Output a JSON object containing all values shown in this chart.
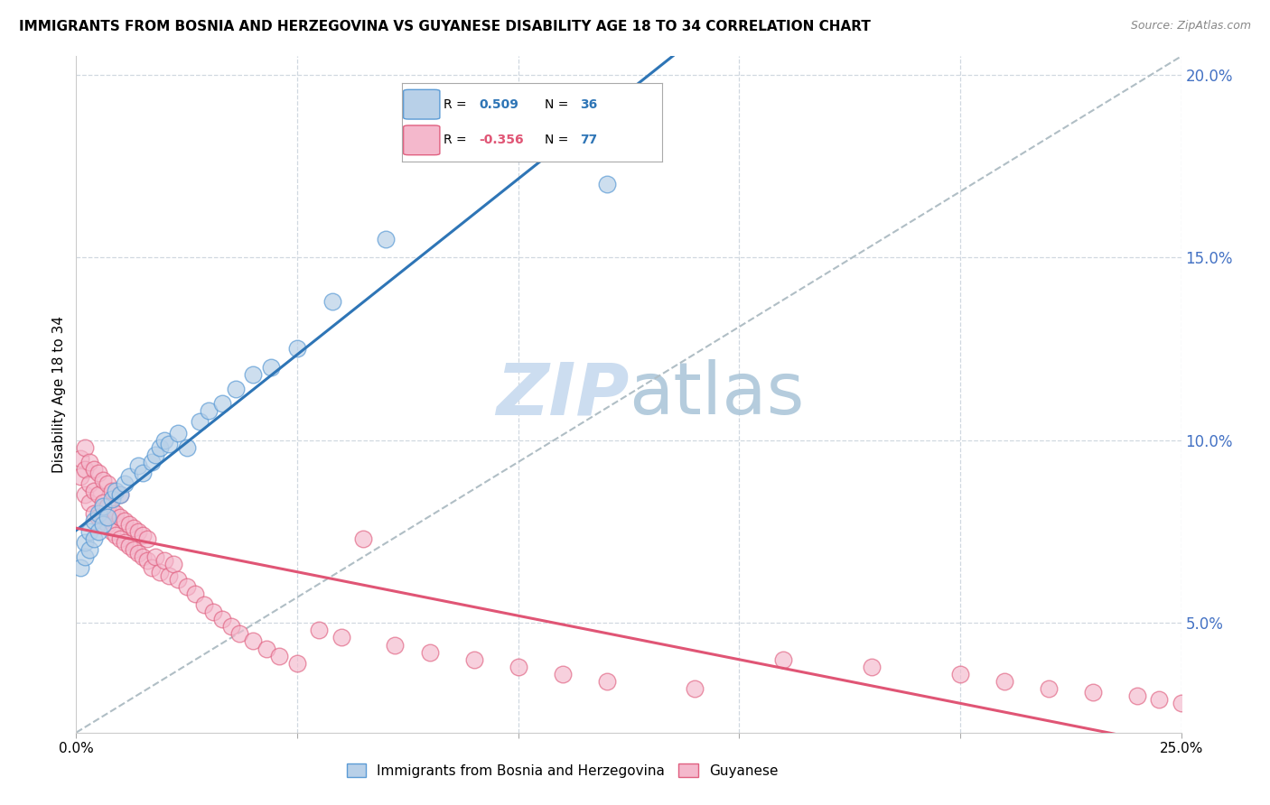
{
  "title": "IMMIGRANTS FROM BOSNIA AND HERZEGOVINA VS GUYANESE DISABILITY AGE 18 TO 34 CORRELATION CHART",
  "source": "Source: ZipAtlas.com",
  "ylabel": "Disability Age 18 to 34",
  "xlim": [
    0.0,
    0.25
  ],
  "ylim": [
    0.02,
    0.205
  ],
  "bosnia_R": 0.509,
  "bosnia_N": 36,
  "guyanese_R": -0.356,
  "guyanese_N": 77,
  "bosnia_color": "#b8d0e8",
  "bosnia_edge_color": "#5b9bd5",
  "bosnia_line_color": "#2e75b6",
  "guyanese_color": "#f4b8cc",
  "guyanese_edge_color": "#e06080",
  "guyanese_line_color": "#e05575",
  "diagonal_color": "#b0bec5",
  "watermark_color": "#ccddf0",
  "grid_color": "#d0d8e0",
  "bosnia_x": [
    0.001,
    0.002,
    0.002,
    0.003,
    0.003,
    0.004,
    0.004,
    0.005,
    0.005,
    0.006,
    0.006,
    0.007,
    0.008,
    0.009,
    0.01,
    0.011,
    0.012,
    0.014,
    0.015,
    0.017,
    0.018,
    0.019,
    0.02,
    0.021,
    0.023,
    0.025,
    0.028,
    0.03,
    0.033,
    0.036,
    0.04,
    0.044,
    0.05,
    0.058,
    0.07,
    0.12
  ],
  "bosnia_y": [
    0.065,
    0.068,
    0.072,
    0.07,
    0.075,
    0.073,
    0.078,
    0.075,
    0.08,
    0.077,
    0.082,
    0.079,
    0.084,
    0.086,
    0.085,
    0.088,
    0.09,
    0.093,
    0.091,
    0.094,
    0.096,
    0.098,
    0.1,
    0.099,
    0.102,
    0.098,
    0.105,
    0.108,
    0.11,
    0.114,
    0.118,
    0.12,
    0.125,
    0.138,
    0.155,
    0.17
  ],
  "guyanese_x": [
    0.001,
    0.001,
    0.002,
    0.002,
    0.002,
    0.003,
    0.003,
    0.003,
    0.004,
    0.004,
    0.004,
    0.005,
    0.005,
    0.005,
    0.006,
    0.006,
    0.006,
    0.007,
    0.007,
    0.007,
    0.008,
    0.008,
    0.008,
    0.009,
    0.009,
    0.01,
    0.01,
    0.01,
    0.011,
    0.011,
    0.012,
    0.012,
    0.013,
    0.013,
    0.014,
    0.014,
    0.015,
    0.015,
    0.016,
    0.016,
    0.017,
    0.018,
    0.019,
    0.02,
    0.021,
    0.022,
    0.023,
    0.025,
    0.027,
    0.029,
    0.031,
    0.033,
    0.035,
    0.037,
    0.04,
    0.043,
    0.046,
    0.05,
    0.055,
    0.06,
    0.065,
    0.072,
    0.08,
    0.09,
    0.1,
    0.11,
    0.12,
    0.14,
    0.16,
    0.18,
    0.2,
    0.21,
    0.22,
    0.23,
    0.24,
    0.245,
    0.25
  ],
  "guyanese_y": [
    0.09,
    0.095,
    0.085,
    0.092,
    0.098,
    0.083,
    0.088,
    0.094,
    0.08,
    0.086,
    0.092,
    0.079,
    0.085,
    0.091,
    0.078,
    0.083,
    0.089,
    0.077,
    0.082,
    0.088,
    0.075,
    0.081,
    0.086,
    0.074,
    0.08,
    0.073,
    0.079,
    0.085,
    0.072,
    0.078,
    0.071,
    0.077,
    0.07,
    0.076,
    0.069,
    0.075,
    0.068,
    0.074,
    0.067,
    0.073,
    0.065,
    0.068,
    0.064,
    0.067,
    0.063,
    0.066,
    0.062,
    0.06,
    0.058,
    0.055,
    0.053,
    0.051,
    0.049,
    0.047,
    0.045,
    0.043,
    0.041,
    0.039,
    0.048,
    0.046,
    0.073,
    0.044,
    0.042,
    0.04,
    0.038,
    0.036,
    0.034,
    0.032,
    0.04,
    0.038,
    0.036,
    0.034,
    0.032,
    0.031,
    0.03,
    0.029,
    0.028
  ]
}
